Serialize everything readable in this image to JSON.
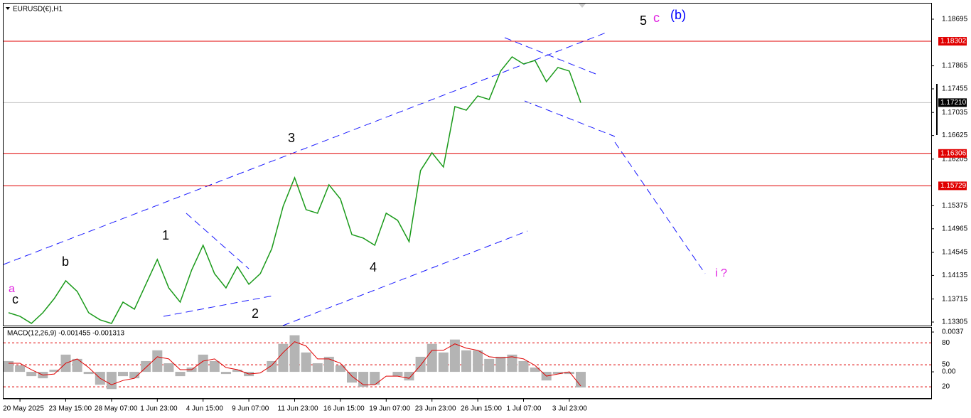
{
  "chart_data": {
    "type": "line",
    "title": "EURUSD(€),H1",
    "categories": [
      null,
      "20 May 2025",
      null,
      null,
      null,
      "23 May 15:00",
      null,
      null,
      null,
      "28 May 07:00",
      null,
      null,
      null,
      "1 Jun 23:00",
      null,
      null,
      null,
      "4 Jun 15:00",
      null,
      null,
      null,
      "9 Jun 07:00",
      null,
      null,
      null,
      "11 Jun 23:00",
      null,
      null,
      null,
      "16 Jun 15:00",
      null,
      null,
      null,
      "19 Jun 07:00",
      null,
      null,
      null,
      "23 Jun 23:00",
      null,
      null,
      null,
      "26 Jun 15:00",
      null,
      null,
      null,
      "1 Jul 07:00",
      null,
      null,
      null,
      "3 Jul 23:00",
      null
    ],
    "series": [
      {
        "name": "EURUSD",
        "color": "#1a9a1a",
        "values": [
          1.13471,
          1.13407,
          1.13281,
          1.13471,
          1.13724,
          1.1404,
          1.1385,
          1.13471,
          1.13344,
          1.13281,
          1.1366,
          1.13534,
          1.13977,
          1.14419,
          1.13913,
          1.1366,
          1.1423,
          1.14672,
          1.14166,
          1.13913,
          1.14293,
          1.13977,
          1.14166,
          1.14609,
          1.15368,
          1.15874,
          1.15305,
          1.15242,
          1.15748,
          1.15495,
          1.14862,
          1.14799,
          1.14672,
          1.15242,
          1.15115,
          1.14736,
          1.16001,
          1.16317,
          1.16064,
          1.17139,
          1.17076,
          1.17329,
          1.17266,
          1.17772,
          1.18025,
          1.17898,
          1.17961,
          1.17582,
          1.17835,
          1.17772,
          1.1721
        ]
      }
    ],
    "ylim": [
      1.13242,
      1.18973
    ],
    "yticks": [
      1.18695,
      1.17865,
      1.17455,
      1.17035,
      1.16625,
      1.16205,
      1.15375,
      1.14965,
      1.14545,
      1.14135,
      1.13715,
      1.13305
    ],
    "levels": [
      {
        "value": 1.18302,
        "color": "#e00000"
      },
      {
        "value": 1.16306,
        "color": "#e00000"
      },
      {
        "value": 1.15729,
        "color": "#e00000"
      }
    ],
    "last_price": {
      "value": 1.1721,
      "label": "1.17210"
    },
    "annotations": [
      {
        "text": "5",
        "color": "#000000"
      },
      {
        "text": "c",
        "color": "#e020e0"
      },
      {
        "text": "(b)",
        "color": "#0000ff"
      },
      {
        "text": "3",
        "color": "#000000"
      },
      {
        "text": "1",
        "color": "#000000"
      },
      {
        "text": "b",
        "color": "#000000"
      },
      {
        "text": "a",
        "color": "#e020e0"
      },
      {
        "text": "c",
        "color": "#000000"
      },
      {
        "text": "2",
        "color": "#000000"
      },
      {
        "text": "4",
        "color": "#000000"
      },
      {
        "text": "i ?",
        "color": "#e020e0"
      }
    ],
    "macd": {
      "title": "MACD(12,26,9) -0.001455 -0.001313",
      "main": {
        "color": "#b4b4b4",
        "values": [
          0.001,
          0.0006,
          -0.0004,
          -0.0006,
          0.0002,
          0.0016,
          0.0012,
          -0.0002,
          -0.0012,
          -0.0016,
          -0.0004,
          -0.0006,
          0.001,
          0.002,
          0.0008,
          -0.0004,
          0.0004,
          0.0016,
          0.001,
          -0.0002,
          0.0002,
          -0.0004,
          0,
          0.001,
          0.0026,
          0.0034,
          0.0018,
          0.0008,
          0.0014,
          0.0006,
          -0.001,
          -0.0014,
          -0.0012,
          0,
          -0.0004,
          -0.0008,
          0.0014,
          0.0026,
          0.0018,
          0.003,
          0.002,
          0.002,
          0.0012,
          0.0014,
          0.0016,
          0.001,
          0.0004,
          -0.0008,
          -0.0002,
          -0.0002,
          -0.001455
        ]
      },
      "signal": {
        "color": "#e00000",
        "values": [
          0.0008,
          0.0008,
          0.0002,
          -0.0003,
          -0.0002,
          0.0008,
          0.0012,
          0.0004,
          -0.0006,
          -0.0012,
          -0.0008,
          -0.0006,
          0.0004,
          0.0014,
          0.0012,
          0.0002,
          0.0002,
          0.001,
          0.0012,
          0.0004,
          0.0002,
          -0.0002,
          -0.0001,
          0.0006,
          0.0018,
          0.0028,
          0.0024,
          0.0012,
          0.0012,
          0.0008,
          -0.0004,
          -0.0012,
          -0.0012,
          -0.0004,
          -0.0004,
          -0.0006,
          0.0006,
          0.002,
          0.002,
          0.0026,
          0.0022,
          0.002,
          0.0014,
          0.0013,
          0.0014,
          0.0012,
          0.0006,
          -0.0004,
          -0.0002,
          0,
          -0.001313
        ]
      },
      "ylim": [
        -0.00244,
        0.0041
      ],
      "yticks": [
        0.0037,
        {
          "value": 0,
          "label": "0.00"
        }
      ],
      "levels": [
        {
          "value": 0.0027,
          "label": "80"
        },
        {
          "value": 0.00066,
          "label": "50"
        },
        {
          "value": -0.00139,
          "label": "20"
        }
      ]
    }
  }
}
